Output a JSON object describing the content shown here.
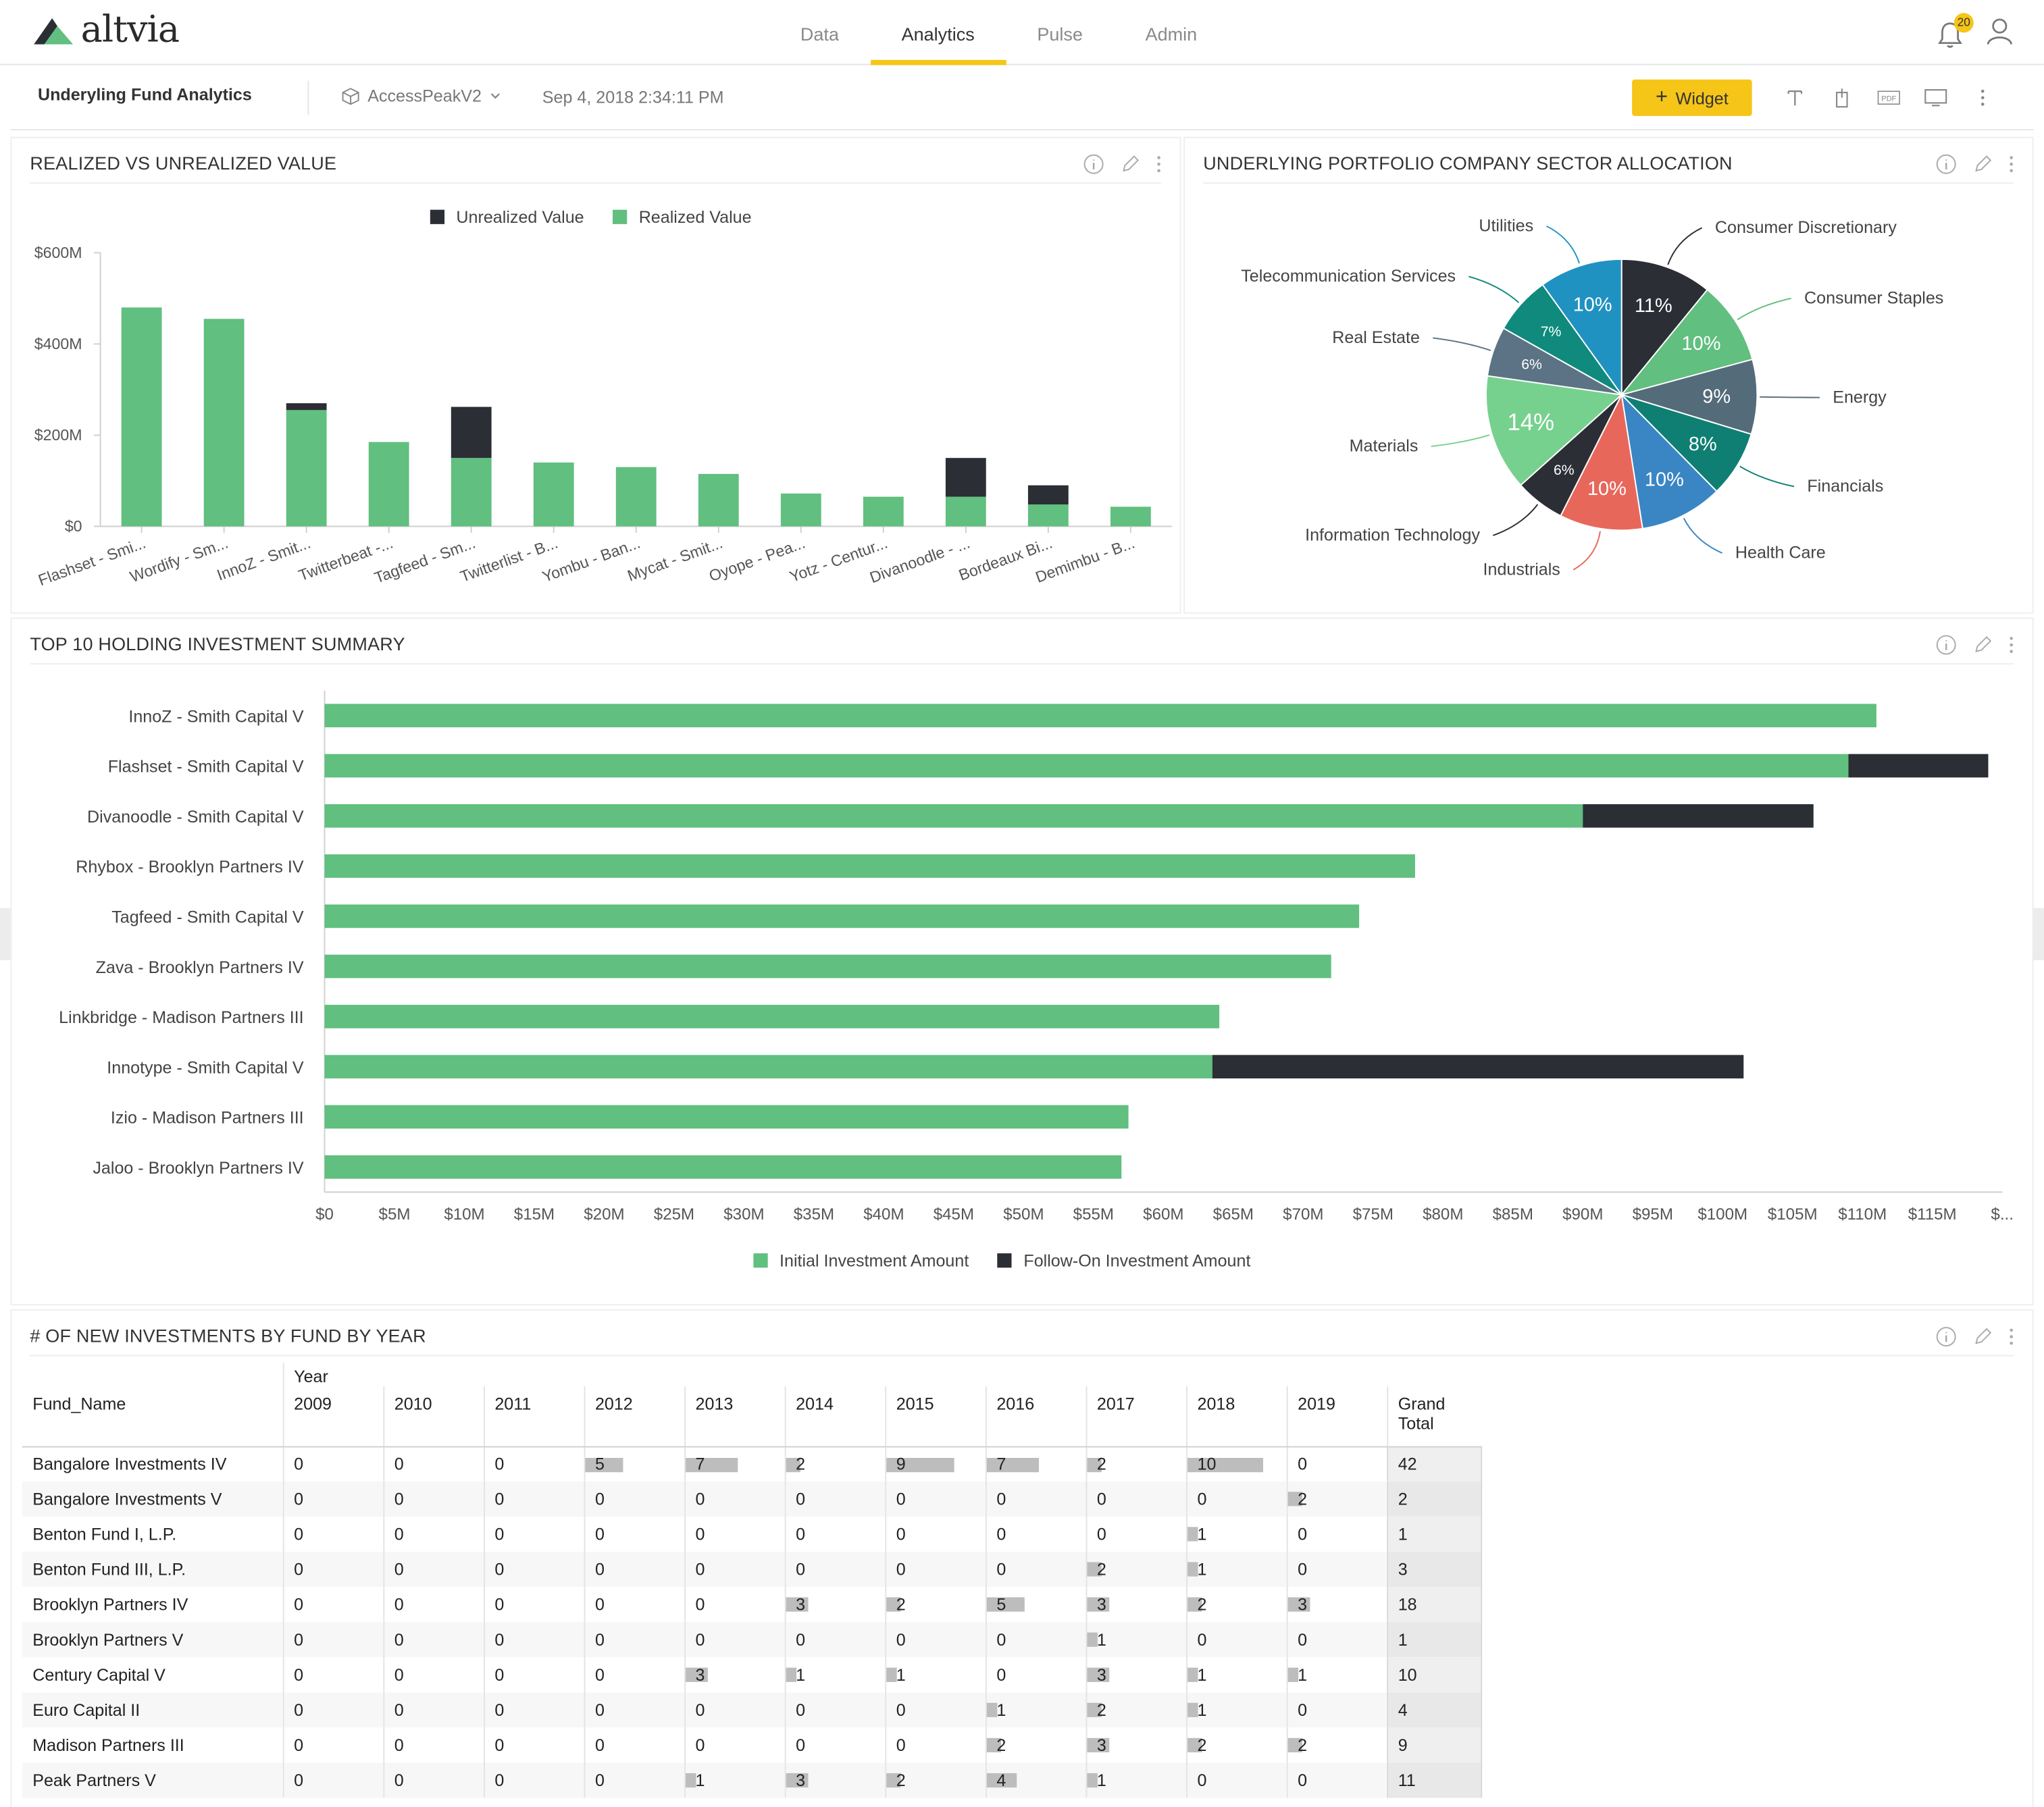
{
  "app": {
    "logo_text": "altvia",
    "nav": [
      "Data",
      "Analytics",
      "Pulse",
      "Admin"
    ],
    "active_nav": "Analytics",
    "notifications_count": "20"
  },
  "subheader": {
    "dashboard_title": "Underyling Fund Analytics",
    "datasource": "AccessPeakV2",
    "timestamp": "Sep 4, 2018 2:34:11 PM",
    "widget_button": "Widget",
    "pdf_label": "PDF"
  },
  "colors": {
    "green": "#61bf7f",
    "dark": "#2b2e35",
    "accent": "#f5c518"
  },
  "panels": {
    "realized": {
      "title": "REALIZED VS UNREALIZED VALUE"
    },
    "sector": {
      "title": "UNDERLYING PORTFOLIO COMPANY SECTOR ALLOCATION"
    },
    "top10": {
      "title": "TOP 10 HOLDING INVESTMENT SUMMARY"
    },
    "newinv": {
      "title": "# OF NEW INVESTMENTS BY FUND BY YEAR"
    }
  },
  "chart_data": [
    {
      "type": "bar",
      "stacked": true,
      "categories": [
        "Flashset - Smi...",
        "Wordify - Sm...",
        "InnoZ - Smit...",
        "Twitterbeat -...",
        "Tagfeed - Sm...",
        "Twitterlist - B...",
        "Yombu - Ban...",
        "Mycat - Smit...",
        "Oyope - Pea...",
        "Yotz - Centur...",
        "Divanoodle - ...",
        "Bordeaux Bi...",
        "Demimbu - B..."
      ],
      "series": [
        {
          "name": "Realized Value",
          "color": "#61bf7f",
          "values": [
            480,
            455,
            255,
            185,
            150,
            140,
            130,
            115,
            72,
            65,
            65,
            48,
            43
          ]
        },
        {
          "name": "Unrealized Value",
          "color": "#2b2e35",
          "values": [
            0,
            0,
            15,
            0,
            112,
            0,
            0,
            0,
            0,
            0,
            85,
            42,
            0
          ]
        }
      ],
      "legend": [
        "Unrealized Value",
        "Realized Value"
      ],
      "yticks": [
        "$0",
        "$200M",
        "$400M",
        "$600M"
      ],
      "ylim": [
        0,
        600
      ],
      "grid": false,
      "legend_position": "top"
    },
    {
      "type": "pie",
      "labels": [
        "Consumer Discretionary",
        "Consumer Staples",
        "Energy",
        "Financials",
        "Health Care",
        "Industrials",
        "Information Technology",
        "Materials",
        "Real Estate",
        "Telecommunication Services",
        "Utilities"
      ],
      "values": [
        11,
        10,
        9,
        8,
        10,
        10,
        6,
        14,
        6,
        7,
        10
      ],
      "slice_labels": [
        "11%",
        "10%",
        "9%",
        "8%",
        "10%",
        "10%",
        "6%",
        "14%",
        "6%",
        "7%",
        "10%"
      ],
      "colors": [
        "#2b2e35",
        "#61bf7f",
        "#546b7a",
        "#0f7f73",
        "#3a86c4",
        "#e8675b",
        "#2b2e35",
        "#76d18f",
        "#5b7384",
        "#0f8a7c",
        "#2092c1"
      ]
    },
    {
      "type": "bar",
      "orientation": "horizontal",
      "stacked": true,
      "categories": [
        "InnoZ - Smith Capital V",
        "Flashset - Smith Capital V",
        "Divanoodle - Smith Capital V",
        "Rhybox - Brooklyn Partners IV",
        "Tagfeed - Smith Capital V",
        "Zava - Brooklyn Partners IV",
        "Linkbridge - Madison Partners III",
        "Innotype - Smith Capital V",
        "Izio - Madison Partners III",
        "Jaloo - Brooklyn Partners IV"
      ],
      "series": [
        {
          "name": "Initial Investment Amount",
          "color": "#61bf7f",
          "values": [
            111,
            109,
            90,
            78,
            74,
            72,
            64,
            63.5,
            57.5,
            57
          ]
        },
        {
          "name": "Follow-On Investment Amount",
          "color": "#2b2e35",
          "values": [
            0,
            10,
            16.5,
            0,
            0,
            0,
            0,
            38,
            0,
            0
          ]
        }
      ],
      "xticks": [
        "$0",
        "$5M",
        "$10M",
        "$15M",
        "$20M",
        "$25M",
        "$30M",
        "$35M",
        "$40M",
        "$45M",
        "$50M",
        "$55M",
        "$60M",
        "$65M",
        "$70M",
        "$75M",
        "$80M",
        "$85M",
        "$90M",
        "$95M",
        "$100M",
        "$105M",
        "$110M",
        "$115M",
        "$..."
      ],
      "xlim": [
        0,
        120
      ],
      "grid": false,
      "legend_position": "bottom"
    },
    {
      "type": "table",
      "row_header": "Fund_Name",
      "column_group": "Year",
      "columns": [
        "2009",
        "2010",
        "2011",
        "2012",
        "2013",
        "2014",
        "2015",
        "2016",
        "2017",
        "2018",
        "2019",
        "Grand Total"
      ],
      "rows": [
        {
          "name": "Bangalore Investments IV",
          "values": [
            0,
            0,
            0,
            5,
            7,
            2,
            9,
            7,
            2,
            10,
            0,
            42
          ]
        },
        {
          "name": "Bangalore Investments V",
          "values": [
            0,
            0,
            0,
            0,
            0,
            0,
            0,
            0,
            0,
            0,
            2,
            2
          ]
        },
        {
          "name": "Benton Fund I, L.P.",
          "values": [
            0,
            0,
            0,
            0,
            0,
            0,
            0,
            0,
            0,
            1,
            0,
            1
          ]
        },
        {
          "name": "Benton Fund III, L.P.",
          "values": [
            0,
            0,
            0,
            0,
            0,
            0,
            0,
            0,
            2,
            1,
            0,
            3
          ]
        },
        {
          "name": "Brooklyn Partners IV",
          "values": [
            0,
            0,
            0,
            0,
            0,
            3,
            2,
            5,
            3,
            2,
            3,
            18
          ]
        },
        {
          "name": "Brooklyn Partners V",
          "values": [
            0,
            0,
            0,
            0,
            0,
            0,
            0,
            0,
            1,
            0,
            0,
            1
          ]
        },
        {
          "name": "Century Capital V",
          "values": [
            0,
            0,
            0,
            0,
            3,
            1,
            1,
            0,
            3,
            1,
            1,
            10
          ]
        },
        {
          "name": "Euro Capital II",
          "values": [
            0,
            0,
            0,
            0,
            0,
            0,
            0,
            1,
            2,
            1,
            0,
            4
          ]
        },
        {
          "name": "Madison Partners III",
          "values": [
            0,
            0,
            0,
            0,
            0,
            0,
            0,
            2,
            3,
            2,
            2,
            9
          ]
        },
        {
          "name": "Peak Partners V",
          "values": [
            0,
            0,
            0,
            0,
            1,
            3,
            2,
            4,
            1,
            0,
            0,
            11
          ]
        }
      ]
    }
  ]
}
